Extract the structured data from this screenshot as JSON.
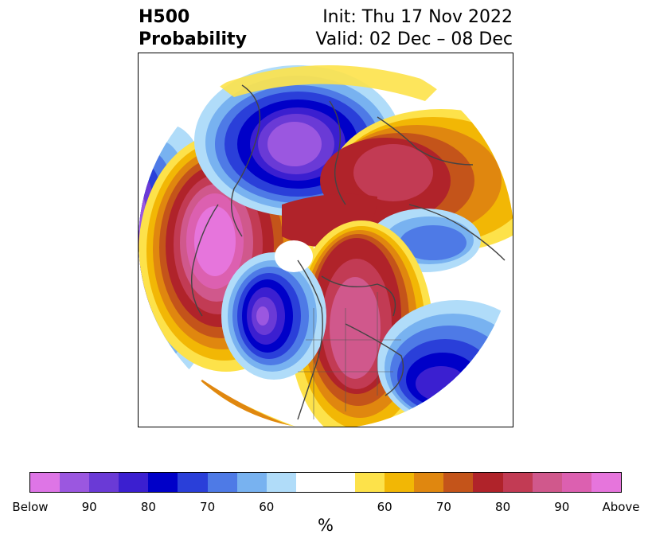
{
  "header": {
    "field_line1": "H500",
    "field_line2": "Probability",
    "init_line": "Init: Thu 17 Nov 2022",
    "valid_line": "Valid: 02 Dec – 08 Dec"
  },
  "map": {
    "projection": "polar stereographic (North America centered)",
    "palette": {
      "below_max": "#de75e6",
      "below_90": "#9b57e0",
      "below_85": "#6a3ad6",
      "below_80": "#3b1fd0",
      "below_75": "#0000c8",
      "below_70": "#2a3fd9",
      "below_65": "#4e7ae6",
      "below_60": "#78b2f0",
      "below_55": "#b0dcf9",
      "neutral": "#ffffff",
      "above_55": "#fde24a",
      "above_60": "#f2b705",
      "above_65": "#e0870f",
      "above_70": "#c4541a",
      "above_75": "#b0232a",
      "above_80": "#c23b54",
      "above_85": "#d0588c",
      "above_90": "#dc60b0",
      "above_max": "#e675dc"
    }
  },
  "colorbar": {
    "unit": "%",
    "segments": [
      {
        "color": "#de75e6"
      },
      {
        "color": "#9b57e0"
      },
      {
        "color": "#6a3ad6"
      },
      {
        "color": "#3b1fd0"
      },
      {
        "color": "#0000c8"
      },
      {
        "color": "#2a3fd9"
      },
      {
        "color": "#4e7ae6"
      },
      {
        "color": "#78b2f0"
      },
      {
        "color": "#b0dcf9"
      },
      {
        "color": "#ffffff",
        "wide": true
      },
      {
        "color": "#fde24a"
      },
      {
        "color": "#f2b705"
      },
      {
        "color": "#e0870f"
      },
      {
        "color": "#c4541a"
      },
      {
        "color": "#b0232a"
      },
      {
        "color": "#c23b54"
      },
      {
        "color": "#d0588c"
      },
      {
        "color": "#dc60b0"
      },
      {
        "color": "#e675dc"
      }
    ],
    "ticks": [
      "Below",
      "90",
      "80",
      "70",
      "60",
      "60",
      "70",
      "80",
      "90",
      "Above"
    ]
  }
}
